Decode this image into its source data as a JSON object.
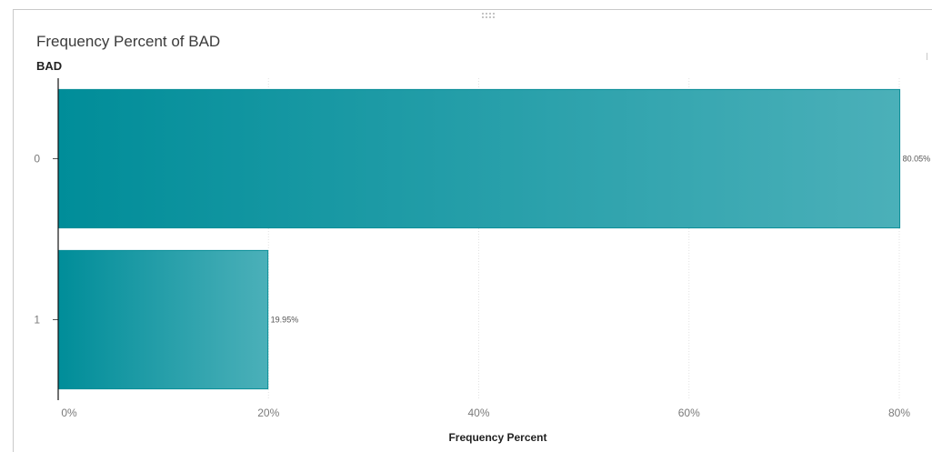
{
  "panel": {
    "title": "Frequency Percent of BAD"
  },
  "colors": {
    "bar_start": "#008d99",
    "bar_end": "#4bb0b9",
    "bar_stroke": "#0b8e98",
    "grid": "#e2e2e2",
    "axis": "#111111"
  },
  "chart_data": {
    "type": "bar",
    "orientation": "horizontal",
    "title": "Frequency Percent of BAD",
    "ylabel": "BAD",
    "xlabel": "Frequency Percent",
    "categories": [
      "0",
      "1"
    ],
    "values": [
      80.05,
      19.95
    ],
    "value_labels": [
      "80.05%",
      "19.95%"
    ],
    "xlim": [
      0,
      80
    ],
    "xticks": [
      0,
      20,
      40,
      60,
      80
    ],
    "xtick_labels": [
      "0%",
      "20%",
      "40%",
      "60%",
      "80%"
    ],
    "grid": true,
    "legend": "none"
  }
}
